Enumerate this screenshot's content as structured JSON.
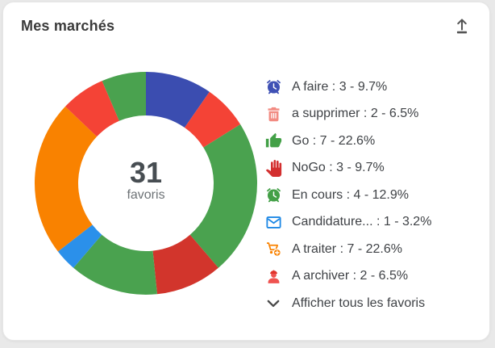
{
  "card": {
    "title": "Mes marchés",
    "show_all_label": "Afficher tous les favoris",
    "background": "#ffffff",
    "page_background": "#e9e9e9",
    "title_color": "#3a3a3a",
    "toolbar": {
      "upload_icon": "upload-icon"
    }
  },
  "chart_data": {
    "type": "pie",
    "variant": "donut",
    "title": "Mes marchés",
    "center_value": "31",
    "center_label": "favoris",
    "total": 31,
    "legend_position": "right",
    "start_angle_deg": 0,
    "direction": "clockwise",
    "segments": [
      {
        "label": "A faire",
        "value": 3,
        "percent": 9.7,
        "color": "#3b4db0",
        "icon": "alarm-clock-icon",
        "icon_color": "#3f51b5",
        "in_legend": true
      },
      {
        "label": "a supprimer",
        "value": 2,
        "percent": 6.5,
        "color": "#f44336",
        "icon": "trash-icon",
        "icon_color": "#f28b82",
        "in_legend": true
      },
      {
        "label": "Go",
        "value": 7,
        "percent": 22.6,
        "color": "#4aa24f",
        "icon": "thumb-up-icon",
        "icon_color": "#43a047",
        "in_legend": true
      },
      {
        "label": "NoGo",
        "value": 3,
        "percent": 9.7,
        "color": "#d2352c",
        "icon": "hand-stop-icon",
        "icon_color": "#d32f2f",
        "in_legend": true
      },
      {
        "label": "En cours",
        "value": 4,
        "percent": 12.9,
        "color": "#4aa24f",
        "icon": "alarm-clock-icon",
        "icon_color": "#43a047",
        "in_legend": true
      },
      {
        "label": "Candidature...",
        "value": 1,
        "percent": 3.2,
        "color": "#2b90ea",
        "icon": "envelope-icon",
        "icon_color": "#1e88e5",
        "in_legend": true
      },
      {
        "label": "A traiter",
        "value": 7,
        "percent": 22.6,
        "color": "#f98200",
        "icon": "cart-plus-icon",
        "icon_color": "#f98200",
        "in_legend": true
      },
      {
        "label": "A archiver",
        "value": 2,
        "percent": 6.5,
        "color": "#f44336",
        "icon": "worker-icon",
        "icon_color": "#ef5350",
        "icon_color2": "#e0342c",
        "in_legend": true
      },
      {
        "label": "",
        "value": 2,
        "percent": 6.5,
        "color": "#4aa24f",
        "icon": "",
        "in_legend": false
      }
    ]
  }
}
